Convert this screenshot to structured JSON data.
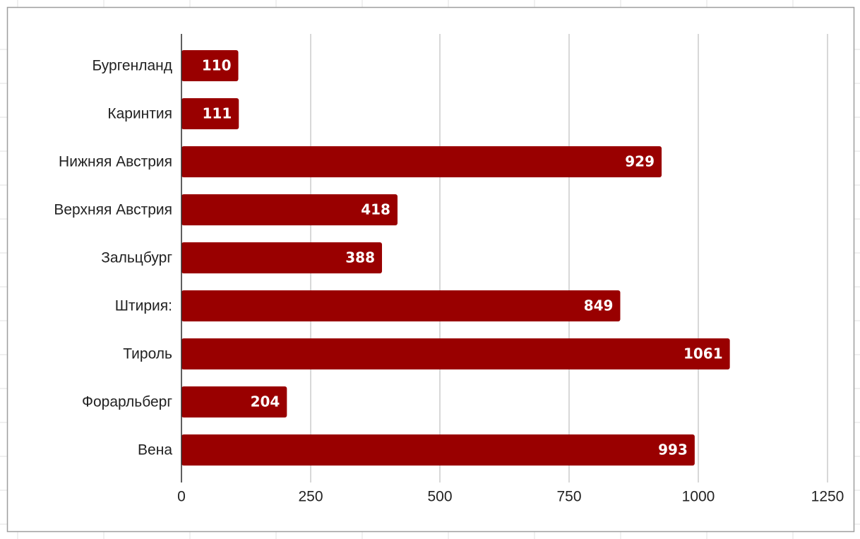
{
  "chart_data": {
    "type": "bar",
    "orientation": "horizontal",
    "categories": [
      "Бургенланд",
      "Каринтия",
      "Нижняя Австрия",
      "Верхняя Австрия",
      "Зальцбург",
      "Штирия:",
      "Тироль",
      "Форарльберг",
      "Вена"
    ],
    "values": [
      110,
      111,
      929,
      418,
      388,
      849,
      1061,
      204,
      993
    ],
    "color": "#990000",
    "xlim": [
      0,
      1250
    ],
    "xticks": [
      0,
      250,
      500,
      750,
      1000,
      1250
    ],
    "grid": true
  }
}
